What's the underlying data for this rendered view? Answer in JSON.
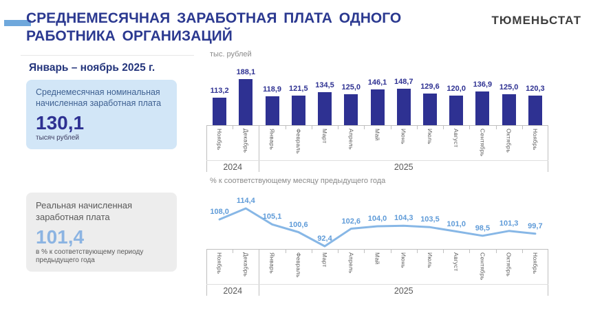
{
  "header": {
    "title": "СРЕДНЕМЕСЯЧНАЯ ЗАРАБОТНАЯ ПЛАТА ОДНОГО РАБОТНИКА ОРГАНИЗАЦИЙ",
    "org": "ТЮМЕНЬСТАТ"
  },
  "period_label": "Январь – ноябрь 2025 г.",
  "cards": {
    "nominal": {
      "label": "Среднемесячная номинальная начисленная заработная плата",
      "value": "130,1",
      "unit": "тысяч рублей"
    },
    "real": {
      "label": "Реальная начисленная заработная плата",
      "value": "101,4",
      "unit": "в % к соответствующему периоду предыдущего года"
    }
  },
  "colors": {
    "accent_dash": "#6fa8dc",
    "title_navy": "#2b3990",
    "bar": "#2e3192",
    "line": "#87b7e6",
    "line_label": "#5f9bd8",
    "nominal_card_bg": "#d2e6f7",
    "real_card_bg": "#ededed"
  },
  "chart_data": [
    {
      "type": "bar",
      "title": "тыс. рублей",
      "categories": [
        "Ноябрь",
        "Декабрь",
        "Январь",
        "Февраль",
        "Март",
        "Апрель",
        "Май",
        "Июнь",
        "Июль",
        "Август",
        "Сентябрь",
        "Октябрь",
        "Ноябрь"
      ],
      "values": [
        113.2,
        188.1,
        118.9,
        121.5,
        134.5,
        125.0,
        146.1,
        148.7,
        129.6,
        120.0,
        136.9,
        125.0,
        120.3
      ],
      "year_groups": [
        {
          "label": "2024",
          "count": 2
        },
        {
          "label": "2025",
          "count": 11
        }
      ],
      "ylim": [
        0,
        190
      ],
      "bar_color": "#2e3192"
    },
    {
      "type": "line",
      "title": "% к соответствующему месяцу предыдущего года",
      "categories": [
        "Ноябрь",
        "Декабрь",
        "Январь",
        "Февраль",
        "Март",
        "Апрель",
        "Май",
        "Июнь",
        "Июль",
        "Август",
        "Сентябрь",
        "Октябрь",
        "Ноябрь"
      ],
      "values": [
        108.0,
        114.4,
        105.1,
        100.6,
        92.4,
        102.6,
        104.0,
        104.3,
        103.5,
        101.0,
        98.5,
        101.3,
        99.7
      ],
      "year_groups": [
        {
          "label": "2024",
          "count": 2
        },
        {
          "label": "2025",
          "count": 11
        }
      ],
      "ylim": [
        90,
        116
      ],
      "line_color": "#87b7e6",
      "label_color": "#5f9bd8"
    }
  ]
}
